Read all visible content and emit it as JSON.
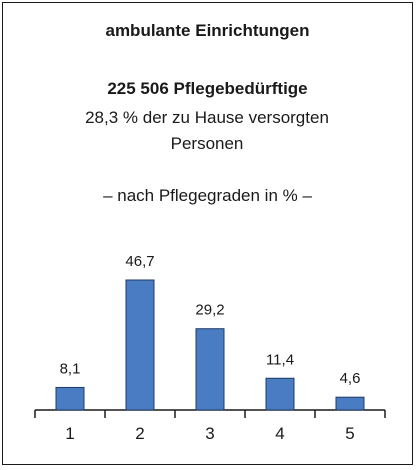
{
  "chart_data": {
    "type": "bar",
    "title": "ambulante Einrichtungen",
    "subtitle_bold": "225 506 Pflegebedürftige",
    "subtitle": "28,3 % der zu Hause versorgten Personen",
    "note": "– nach Pflegegraden in % –",
    "categories": [
      "1",
      "2",
      "3",
      "4",
      "5"
    ],
    "values": [
      8.1,
      46.7,
      29.2,
      11.4,
      4.6
    ],
    "value_labels": [
      "8,1",
      "46,7",
      "29,2",
      "11,4",
      "4,6"
    ],
    "color": "#4a7cc4"
  }
}
